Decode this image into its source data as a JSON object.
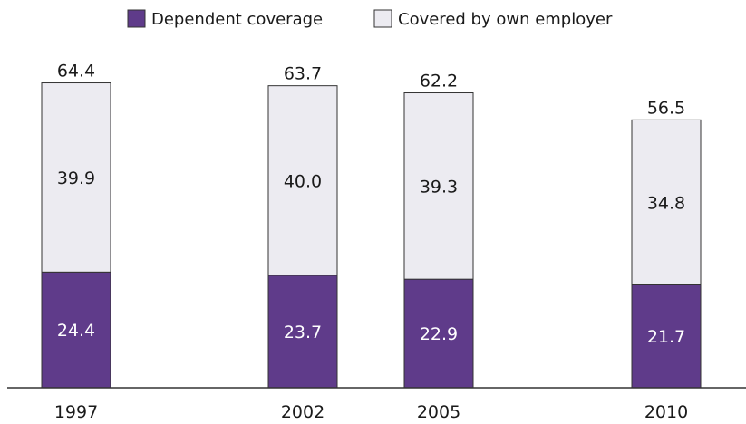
{
  "chart_data": {
    "type": "bar",
    "stacked": true,
    "categories": [
      "1997",
      "2002",
      "2005",
      "2010"
    ],
    "series": [
      {
        "name": "Dependent coverage",
        "values": [
          24.4,
          23.7,
          22.9,
          21.7
        ],
        "color": "#5f3b8a"
      },
      {
        "name": "Covered by own employer",
        "values": [
          39.9,
          40.0,
          39.3,
          34.8
        ],
        "color": "#ecebf1"
      }
    ],
    "totals": [
      "64.4",
      "63.7",
      "62.2",
      "56.5"
    ],
    "segment_labels": [
      [
        "24.4",
        "23.7",
        "22.9",
        "21.7"
      ],
      [
        "39.9",
        "40.0",
        "39.3",
        "34.8"
      ]
    ],
    "title": "",
    "xlabel": "",
    "ylabel": "",
    "ylim": [
      0,
      64.4
    ],
    "grid": false,
    "legend": "top-center"
  }
}
